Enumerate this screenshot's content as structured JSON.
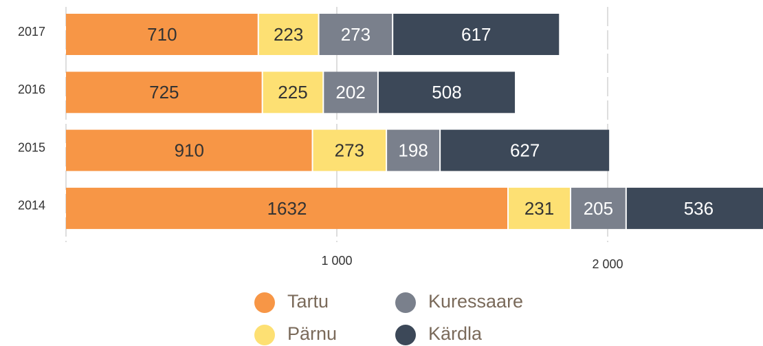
{
  "chart_data": {
    "type": "stacked-bar-horizontal",
    "categories": [
      "2017",
      "2016",
      "2015",
      "2014"
    ],
    "series": [
      {
        "name": "Tartu",
        "color": "#f79646",
        "values": [
          710,
          725,
          910,
          1632
        ]
      },
      {
        "name": "Pärnu",
        "color": "#fde073",
        "values": [
          223,
          225,
          273,
          231
        ]
      },
      {
        "name": "Kuressaare",
        "color": "#7a808c",
        "values": [
          273,
          202,
          198,
          205
        ]
      },
      {
        "name": "Kärdla",
        "color": "#3c4858",
        "values": [
          617,
          508,
          627,
          536
        ]
      }
    ],
    "xlim": [
      0,
      2604
    ],
    "xticks": [
      {
        "value": 1000,
        "label": "1 000"
      },
      {
        "value": 2000,
        "label": "2 000"
      }
    ],
    "grid": true
  }
}
